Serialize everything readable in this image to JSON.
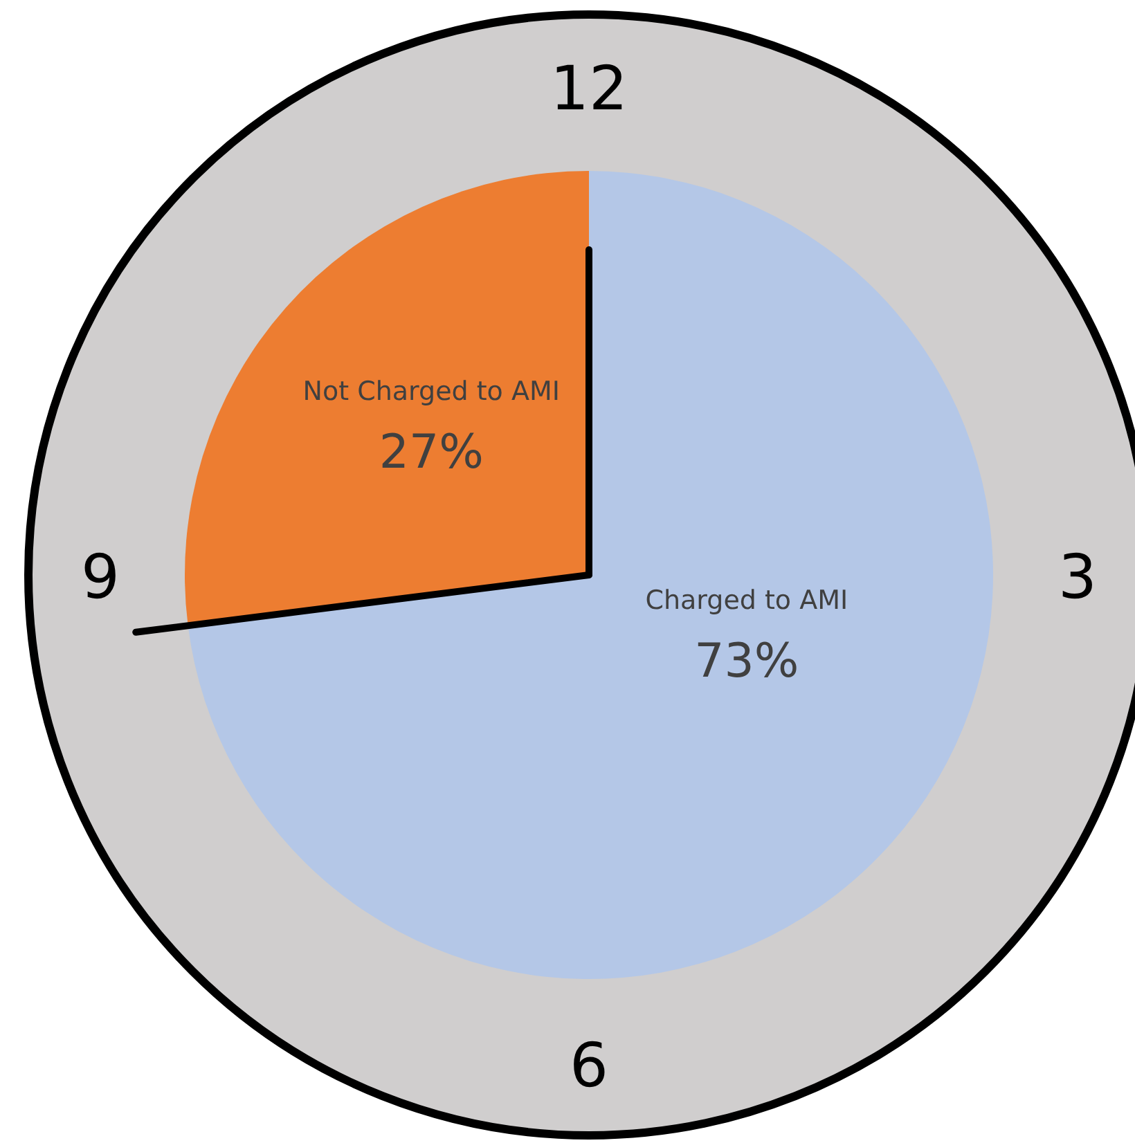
{
  "chart_data": {
    "type": "pie",
    "categories": [
      "Charged to AMI",
      "Not Charged to AMI"
    ],
    "values": [
      73,
      27
    ],
    "colors": [
      "#b4c7e7",
      "#ed7d31"
    ],
    "value_labels": [
      "73%",
      "27%"
    ],
    "needle": "Charged to AMI",
    "annotations": [
      "12",
      "3",
      "6",
      "9"
    ]
  }
}
